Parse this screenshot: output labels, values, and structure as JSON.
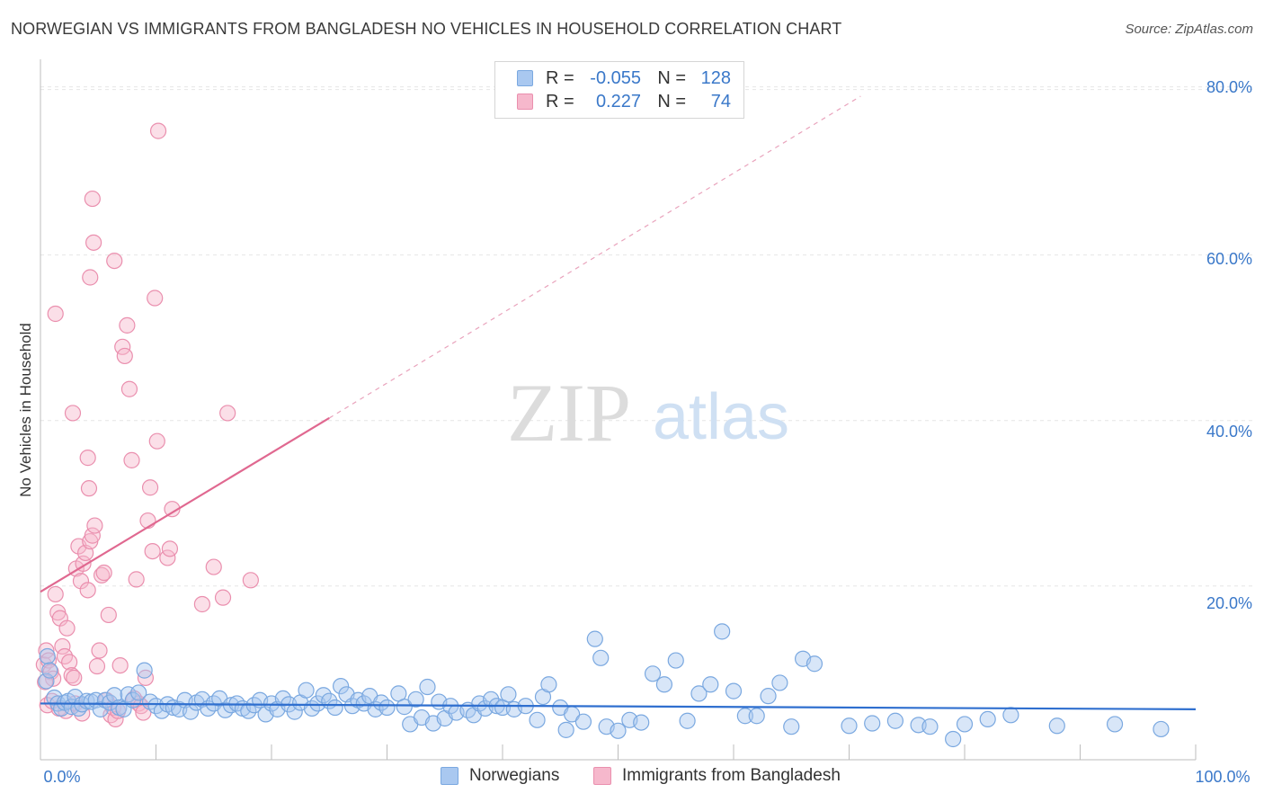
{
  "title": "NORWEGIAN VS IMMIGRANTS FROM BANGLADESH NO VEHICLES IN HOUSEHOLD CORRELATION CHART",
  "source": "Source: ZipAtlas.com",
  "watermark": {
    "zip": "ZIP",
    "atlas": "atlas"
  },
  "colors": {
    "blue_fill": "#a9c8f0",
    "blue_stroke": "#7aa8e0",
    "blue_line": "#2f6fcf",
    "pink_fill": "#f6b8cc",
    "pink_stroke": "#ea8fae",
    "pink_line": "#e06890",
    "axis_label": "#3a78c9",
    "grid": "#e6e6e6"
  },
  "legend": {
    "rows": [
      {
        "r_label": "R =",
        "r_value": "-0.055",
        "n_label": "N =",
        "n_value": "128",
        "color": "blue"
      },
      {
        "r_label": "R =",
        "r_value": "0.227",
        "n_label": "N =",
        "n_value": "74",
        "color": "pink"
      }
    ]
  },
  "bottom_legend": [
    {
      "label": "Norwegians",
      "color": "blue"
    },
    {
      "label": "Immigrants from Bangladesh",
      "color": "pink"
    }
  ],
  "chart_data": {
    "type": "scatter",
    "title": "NORWEGIAN VS IMMIGRANTS FROM BANGLADESH NO VEHICLES IN HOUSEHOLD CORRELATION CHART",
    "xlabel": "",
    "ylabel": "No Vehicles in Household",
    "xlim": [
      0,
      100
    ],
    "ylim": [
      -1,
      83
    ],
    "x_tick_labels": [
      {
        "value": 0,
        "label": "0.0%"
      },
      {
        "value": 100,
        "label": "100.0%"
      }
    ],
    "y_ticks": [
      {
        "value": 20,
        "label": "20.0%"
      },
      {
        "value": 40,
        "label": "40.0%"
      },
      {
        "value": 60,
        "label": "60.0%"
      },
      {
        "value": 80,
        "label": "80.0%"
      }
    ],
    "x_minor_ticks": [
      0,
      10,
      20,
      30,
      40,
      50,
      60,
      70,
      80,
      90,
      100
    ],
    "grid": true,
    "series": [
      {
        "name": "Norwegians",
        "color": "blue",
        "r": -0.055,
        "n": 128,
        "trend": {
          "x0": 0,
          "y0": 5.8,
          "x1": 100,
          "y1": 5.1
        },
        "points": [
          [
            0.5,
            8.5
          ],
          [
            0.6,
            11.5
          ],
          [
            0.8,
            9.8
          ],
          [
            1.2,
            6.5
          ],
          [
            1.5,
            5.8
          ],
          [
            1.8,
            5.2
          ],
          [
            2.1,
            5.9
          ],
          [
            2.4,
            6.1
          ],
          [
            2.7,
            5.4
          ],
          [
            3.0,
            6.6
          ],
          [
            3.3,
            5.2
          ],
          [
            3.6,
            5.7
          ],
          [
            4.0,
            6.1
          ],
          [
            4.4,
            6.0
          ],
          [
            4.8,
            6.2
          ],
          [
            5.2,
            5.1
          ],
          [
            5.6,
            6.2
          ],
          [
            6.0,
            5.9
          ],
          [
            6.4,
            6.8
          ],
          [
            6.8,
            5.3
          ],
          [
            7.2,
            5.1
          ],
          [
            7.6,
            6.9
          ],
          [
            8.0,
            6.2
          ],
          [
            8.5,
            7.1
          ],
          [
            9.0,
            9.8
          ],
          [
            9.5,
            6.0
          ],
          [
            10.0,
            5.5
          ],
          [
            10.5,
            4.9
          ],
          [
            11.0,
            5.7
          ],
          [
            11.5,
            5.3
          ],
          [
            12.0,
            5.1
          ],
          [
            12.5,
            6.2
          ],
          [
            13.0,
            4.8
          ],
          [
            13.5,
            5.9
          ],
          [
            14.0,
            6.3
          ],
          [
            14.5,
            5.2
          ],
          [
            15.0,
            5.8
          ],
          [
            15.5,
            6.4
          ],
          [
            16.0,
            5.0
          ],
          [
            16.5,
            5.6
          ],
          [
            17.0,
            5.8
          ],
          [
            17.5,
            5.2
          ],
          [
            18.0,
            4.9
          ],
          [
            18.5,
            5.6
          ],
          [
            19.0,
            6.2
          ],
          [
            19.5,
            4.5
          ],
          [
            20.0,
            5.8
          ],
          [
            20.5,
            5.1
          ],
          [
            21.0,
            6.4
          ],
          [
            21.5,
            5.7
          ],
          [
            22.0,
            4.8
          ],
          [
            22.5,
            5.9
          ],
          [
            23.0,
            7.4
          ],
          [
            23.5,
            5.2
          ],
          [
            24.0,
            5.8
          ],
          [
            24.5,
            6.8
          ],
          [
            25.0,
            6.1
          ],
          [
            25.5,
            5.3
          ],
          [
            26.0,
            7.9
          ],
          [
            26.5,
            6.9
          ],
          [
            27.0,
            5.5
          ],
          [
            27.5,
            6.2
          ],
          [
            28.0,
            5.8
          ],
          [
            28.5,
            6.7
          ],
          [
            29.0,
            5.1
          ],
          [
            29.5,
            5.9
          ],
          [
            30.0,
            5.3
          ],
          [
            31.0,
            7.0
          ],
          [
            31.5,
            5.4
          ],
          [
            32.0,
            3.3
          ],
          [
            32.5,
            6.3
          ],
          [
            33.0,
            4.1
          ],
          [
            33.5,
            7.8
          ],
          [
            34.0,
            3.4
          ],
          [
            34.5,
            6.0
          ],
          [
            35.0,
            4.0
          ],
          [
            35.5,
            5.5
          ],
          [
            36.0,
            4.7
          ],
          [
            37.0,
            5.0
          ],
          [
            37.5,
            4.4
          ],
          [
            38.0,
            5.8
          ],
          [
            38.5,
            5.2
          ],
          [
            39.0,
            6.3
          ],
          [
            39.5,
            5.5
          ],
          [
            40.0,
            5.3
          ],
          [
            40.5,
            6.9
          ],
          [
            41.0,
            5.1
          ],
          [
            42.0,
            5.5
          ],
          [
            43.0,
            3.8
          ],
          [
            43.5,
            6.6
          ],
          [
            44.0,
            8.1
          ],
          [
            45.0,
            5.3
          ],
          [
            45.5,
            2.6
          ],
          [
            46.0,
            4.5
          ],
          [
            47.0,
            3.6
          ],
          [
            48.0,
            13.6
          ],
          [
            48.5,
            11.3
          ],
          [
            49.0,
            3.0
          ],
          [
            50.0,
            2.5
          ],
          [
            51.0,
            3.8
          ],
          [
            52.0,
            3.5
          ],
          [
            53.0,
            9.4
          ],
          [
            54.0,
            8.1
          ],
          [
            55.0,
            11.0
          ],
          [
            56.0,
            3.7
          ],
          [
            57.0,
            7.0
          ],
          [
            58.0,
            8.1
          ],
          [
            59.0,
            14.5
          ],
          [
            60.0,
            7.3
          ],
          [
            61.0,
            4.3
          ],
          [
            62.0,
            4.3
          ],
          [
            63.0,
            6.7
          ],
          [
            64.0,
            8.3
          ],
          [
            65.0,
            3.0
          ],
          [
            66.0,
            11.2
          ],
          [
            67.0,
            10.6
          ],
          [
            70.0,
            3.1
          ],
          [
            72.0,
            3.4
          ],
          [
            74.0,
            3.7
          ],
          [
            76.0,
            3.2
          ],
          [
            77.0,
            3.0
          ],
          [
            79.0,
            1.5
          ],
          [
            80.0,
            3.3
          ],
          [
            82.0,
            3.9
          ],
          [
            84.0,
            4.4
          ],
          [
            88.0,
            3.1
          ],
          [
            93.0,
            3.3
          ],
          [
            97.0,
            2.7
          ]
        ]
      },
      {
        "name": "Immigrants from Bangladesh",
        "color": "pink",
        "r": 0.227,
        "n": 74,
        "trend_solid": {
          "x0": 0,
          "y0": 19.3,
          "x1": 25,
          "y1": 40.3
        },
        "trend_dashed": {
          "x0": 25,
          "y0": 40.3,
          "x1": 71,
          "y1": 79.2
        },
        "points": [
          [
            0.3,
            10.5
          ],
          [
            0.5,
            12.2
          ],
          [
            0.7,
            11.0
          ],
          [
            0.9,
            9.6
          ],
          [
            1.1,
            8.8
          ],
          [
            1.3,
            19.0
          ],
          [
            1.5,
            16.8
          ],
          [
            1.7,
            16.1
          ],
          [
            1.9,
            12.7
          ],
          [
            2.1,
            11.5
          ],
          [
            2.3,
            14.9
          ],
          [
            2.5,
            10.8
          ],
          [
            2.7,
            9.2
          ],
          [
            2.9,
            8.9
          ],
          [
            3.1,
            22.1
          ],
          [
            3.3,
            24.8
          ],
          [
            3.5,
            20.6
          ],
          [
            3.7,
            22.7
          ],
          [
            3.9,
            24.0
          ],
          [
            4.1,
            19.5
          ],
          [
            4.3,
            25.4
          ],
          [
            4.5,
            26.1
          ],
          [
            4.7,
            27.3
          ],
          [
            4.9,
            10.3
          ],
          [
            5.1,
            12.2
          ],
          [
            5.3,
            21.3
          ],
          [
            5.5,
            21.6
          ],
          [
            5.7,
            6.2
          ],
          [
            5.9,
            16.5
          ],
          [
            6.1,
            4.4
          ],
          [
            6.3,
            5.3
          ],
          [
            6.5,
            3.9
          ],
          [
            6.7,
            4.9
          ],
          [
            6.9,
            10.4
          ],
          [
            7.1,
            48.9
          ],
          [
            7.3,
            47.8
          ],
          [
            7.5,
            51.5
          ],
          [
            7.7,
            43.8
          ],
          [
            7.9,
            35.2
          ],
          [
            8.1,
            6.4
          ],
          [
            8.3,
            20.8
          ],
          [
            8.5,
            5.8
          ],
          [
            8.7,
            5.5
          ],
          [
            8.9,
            4.7
          ],
          [
            9.1,
            8.9
          ],
          [
            9.3,
            27.9
          ],
          [
            9.5,
            31.9
          ],
          [
            9.7,
            24.2
          ],
          [
            9.9,
            54.8
          ],
          [
            10.1,
            37.5
          ],
          [
            2.8,
            40.9
          ],
          [
            1.3,
            52.9
          ],
          [
            4.1,
            35.5
          ],
          [
            4.2,
            31.8
          ],
          [
            4.3,
            57.3
          ],
          [
            4.5,
            66.8
          ],
          [
            4.6,
            61.5
          ],
          [
            6.4,
            59.3
          ],
          [
            10.2,
            75.0
          ],
          [
            11.0,
            23.4
          ],
          [
            11.2,
            24.5
          ],
          [
            11.4,
            29.3
          ],
          [
            14.0,
            17.8
          ],
          [
            15.0,
            22.3
          ],
          [
            15.8,
            18.6
          ],
          [
            16.2,
            40.9
          ],
          [
            18.2,
            20.7
          ],
          [
            0.6,
            5.6
          ],
          [
            1.0,
            6.1
          ],
          [
            1.6,
            5.2
          ],
          [
            2.2,
            4.9
          ],
          [
            3.0,
            5.8
          ],
          [
            3.6,
            4.6
          ],
          [
            0.4,
            8.4
          ]
        ]
      }
    ]
  },
  "axis_labels": {
    "y_title": "No Vehicles in Household",
    "x_left": "0.0%",
    "x_right": "100.0%",
    "y_20": "20.0%",
    "y_40": "40.0%",
    "y_60": "60.0%",
    "y_80": "80.0%"
  }
}
